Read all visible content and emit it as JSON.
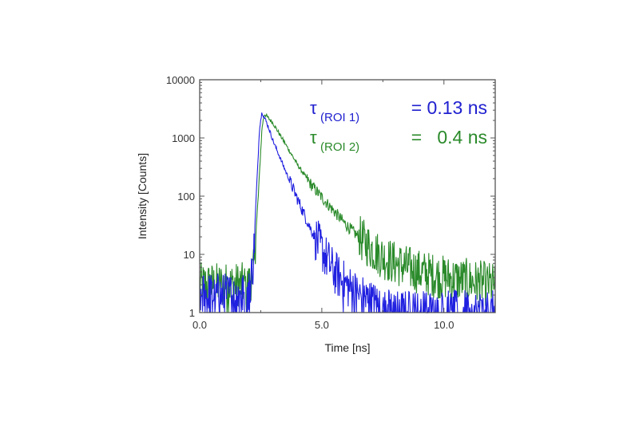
{
  "chart_data": {
    "type": "line",
    "title": "",
    "xlabel": "Time [ns]",
    "ylabel": "Intensity [Counts]",
    "xlim": [
      0,
      12.1
    ],
    "ylim": [
      1,
      10000
    ],
    "yscale": "log",
    "grid": false,
    "legend_position": "none",
    "x_ticks": [
      0,
      5,
      10
    ],
    "x_tick_labels": [
      "0.0",
      "5.0",
      "10.0"
    ],
    "y_ticks": [
      1,
      10,
      100,
      1000,
      10000
    ],
    "y_tick_labels": [
      "1",
      "10",
      "100",
      "1000",
      "10000"
    ],
    "annotations": [
      {
        "symbol": "τ",
        "subscript": "(ROI 1)",
        "text": "= 0.13 ns",
        "color": "#2020d0"
      },
      {
        "symbol": "τ",
        "subscript": "(ROI 2)",
        "text": "=   0.4 ns",
        "color": "#2a8a2a"
      }
    ],
    "series": [
      {
        "name": "ROI 1",
        "color": "#2020e0",
        "peak_time_ns": 2.55,
        "peak_counts": 2800,
        "lifetime_ns": 0.13,
        "x": [
          0.0,
          1.0,
          2.0,
          2.2,
          2.35,
          2.45,
          2.55,
          2.8,
          3.0,
          3.5,
          4.0,
          4.5,
          5.0,
          5.5,
          6.0,
          6.5,
          7.0,
          8.0,
          9.0,
          10.0,
          11.0,
          12.0
        ],
        "values": [
          2,
          2,
          2,
          8,
          200,
          1500,
          2800,
          1600,
          900,
          280,
          90,
          30,
          12,
          5,
          3,
          2,
          1.5,
          1,
          1,
          1,
          1,
          1
        ]
      },
      {
        "name": "ROI 2",
        "color": "#2a8a2a",
        "peak_time_ns": 2.65,
        "peak_counts": 2600,
        "lifetime_ns": 0.4,
        "x": [
          0.0,
          1.0,
          2.0,
          2.2,
          2.4,
          2.55,
          2.65,
          3.0,
          3.5,
          4.0,
          4.5,
          5.0,
          5.5,
          6.0,
          6.5,
          7.0,
          7.5,
          8.0,
          9.0,
          10.0,
          11.0,
          12.0
        ],
        "values": [
          3,
          3,
          3,
          5,
          100,
          1500,
          2600,
          1800,
          800,
          350,
          170,
          95,
          55,
          32,
          20,
          13,
          9,
          7,
          5,
          4,
          3.5,
          3
        ]
      }
    ]
  }
}
